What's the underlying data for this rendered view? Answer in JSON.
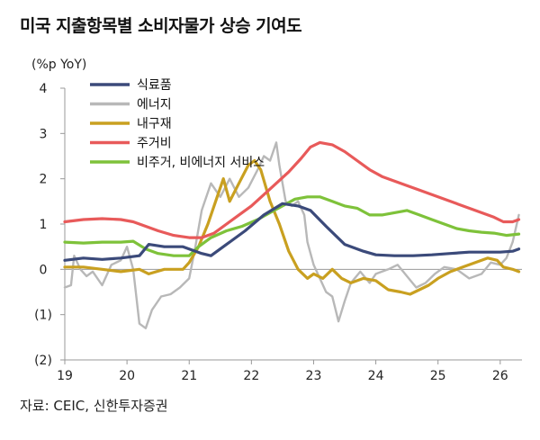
{
  "title": "미국 지출항목별 소비자물가 상승 기여도",
  "source": "자료: CEIC, 신한투자증권",
  "chart_data": {
    "type": "line",
    "ylabel": "(%p YoY)",
    "ylim": [
      -2,
      4
    ],
    "yticks": [
      4,
      3,
      2,
      1,
      0,
      -1,
      -2
    ],
    "ytick_labels": [
      "4",
      "3",
      "2",
      "1",
      "0",
      "(1)",
      "(2)"
    ],
    "xlim": [
      2019.0,
      2026.35
    ],
    "xticks": [
      2019,
      2020,
      2021,
      2022,
      2023,
      2024,
      2025,
      2026
    ],
    "xtick_labels": [
      "19",
      "20",
      "21",
      "22",
      "23",
      "24",
      "25",
      "26"
    ],
    "legend_position": "top-left",
    "series": [
      {
        "name": "식료품",
        "color": "#3b4a7a",
        "width": 3.2,
        "points": [
          [
            2019.0,
            0.2
          ],
          [
            2019.3,
            0.25
          ],
          [
            2019.6,
            0.22
          ],
          [
            2019.9,
            0.25
          ],
          [
            2020.2,
            0.3
          ],
          [
            2020.35,
            0.55
          ],
          [
            2020.6,
            0.5
          ],
          [
            2020.9,
            0.5
          ],
          [
            2021.0,
            0.45
          ],
          [
            2021.2,
            0.35
          ],
          [
            2021.35,
            0.3
          ],
          [
            2021.6,
            0.55
          ],
          [
            2021.9,
            0.85
          ],
          [
            2022.2,
            1.2
          ],
          [
            2022.5,
            1.45
          ],
          [
            2022.75,
            1.4
          ],
          [
            2022.95,
            1.3
          ],
          [
            2023.2,
            0.95
          ],
          [
            2023.5,
            0.55
          ],
          [
            2023.8,
            0.4
          ],
          [
            2024.0,
            0.32
          ],
          [
            2024.3,
            0.3
          ],
          [
            2024.6,
            0.3
          ],
          [
            2024.9,
            0.32
          ],
          [
            2025.2,
            0.35
          ],
          [
            2025.5,
            0.38
          ],
          [
            2025.8,
            0.38
          ],
          [
            2026.0,
            0.38
          ],
          [
            2026.2,
            0.4
          ],
          [
            2026.3,
            0.45
          ]
        ]
      },
      {
        "name": "에너지",
        "color": "#b8b8b8",
        "width": 2.4,
        "points": [
          [
            2019.0,
            -0.4
          ],
          [
            2019.1,
            -0.35
          ],
          [
            2019.15,
            0.3
          ],
          [
            2019.25,
            0.0
          ],
          [
            2019.35,
            -0.15
          ],
          [
            2019.45,
            -0.05
          ],
          [
            2019.6,
            -0.35
          ],
          [
            2019.75,
            0.1
          ],
          [
            2019.9,
            0.2
          ],
          [
            2020.0,
            0.5
          ],
          [
            2020.1,
            0.0
          ],
          [
            2020.2,
            -1.2
          ],
          [
            2020.3,
            -1.3
          ],
          [
            2020.4,
            -0.9
          ],
          [
            2020.55,
            -0.6
          ],
          [
            2020.7,
            -0.55
          ],
          [
            2020.85,
            -0.4
          ],
          [
            2021.0,
            -0.2
          ],
          [
            2021.1,
            0.5
          ],
          [
            2021.2,
            1.3
          ],
          [
            2021.35,
            1.9
          ],
          [
            2021.5,
            1.6
          ],
          [
            2021.65,
            2.0
          ],
          [
            2021.8,
            1.6
          ],
          [
            2021.95,
            1.8
          ],
          [
            2022.1,
            2.2
          ],
          [
            2022.2,
            2.5
          ],
          [
            2022.3,
            2.4
          ],
          [
            2022.4,
            2.8
          ],
          [
            2022.45,
            2.3
          ],
          [
            2022.55,
            1.5
          ],
          [
            2022.65,
            1.4
          ],
          [
            2022.75,
            1.5
          ],
          [
            2022.85,
            1.2
          ],
          [
            2022.9,
            0.6
          ],
          [
            2023.0,
            0.1
          ],
          [
            2023.1,
            -0.2
          ],
          [
            2023.2,
            -0.5
          ],
          [
            2023.3,
            -0.6
          ],
          [
            2023.4,
            -1.15
          ],
          [
            2023.5,
            -0.7
          ],
          [
            2023.6,
            -0.3
          ],
          [
            2023.75,
            -0.05
          ],
          [
            2023.9,
            -0.3
          ],
          [
            2024.0,
            -0.1
          ],
          [
            2024.2,
            0.0
          ],
          [
            2024.35,
            0.1
          ],
          [
            2024.5,
            -0.15
          ],
          [
            2024.65,
            -0.4
          ],
          [
            2024.8,
            -0.3
          ],
          [
            2024.95,
            -0.1
          ],
          [
            2025.1,
            0.05
          ],
          [
            2025.3,
            0.0
          ],
          [
            2025.5,
            -0.2
          ],
          [
            2025.7,
            -0.1
          ],
          [
            2025.85,
            0.15
          ],
          [
            2026.0,
            0.1
          ],
          [
            2026.1,
            0.25
          ],
          [
            2026.2,
            0.6
          ],
          [
            2026.3,
            1.2
          ]
        ]
      },
      {
        "name": "내구재",
        "color": "#c9a020",
        "width": 3.2,
        "points": [
          [
            2019.0,
            0.05
          ],
          [
            2019.3,
            0.05
          ],
          [
            2019.6,
            0.0
          ],
          [
            2019.9,
            -0.05
          ],
          [
            2020.2,
            0.0
          ],
          [
            2020.35,
            -0.1
          ],
          [
            2020.6,
            0.0
          ],
          [
            2020.9,
            0.0
          ],
          [
            2021.0,
            0.15
          ],
          [
            2021.15,
            0.5
          ],
          [
            2021.3,
            1.0
          ],
          [
            2021.45,
            1.6
          ],
          [
            2021.55,
            2.0
          ],
          [
            2021.65,
            1.5
          ],
          [
            2021.8,
            1.9
          ],
          [
            2021.95,
            2.3
          ],
          [
            2022.05,
            2.4
          ],
          [
            2022.15,
            2.2
          ],
          [
            2022.3,
            1.5
          ],
          [
            2022.45,
            1.0
          ],
          [
            2022.6,
            0.4
          ],
          [
            2022.75,
            0.0
          ],
          [
            2022.9,
            -0.2
          ],
          [
            2023.0,
            -0.1
          ],
          [
            2023.15,
            -0.2
          ],
          [
            2023.3,
            0.0
          ],
          [
            2023.45,
            -0.2
          ],
          [
            2023.6,
            -0.3
          ],
          [
            2023.8,
            -0.2
          ],
          [
            2024.0,
            -0.25
          ],
          [
            2024.2,
            -0.45
          ],
          [
            2024.4,
            -0.5
          ],
          [
            2024.55,
            -0.55
          ],
          [
            2024.7,
            -0.45
          ],
          [
            2024.85,
            -0.35
          ],
          [
            2025.0,
            -0.2
          ],
          [
            2025.2,
            -0.05
          ],
          [
            2025.4,
            0.05
          ],
          [
            2025.6,
            0.15
          ],
          [
            2025.8,
            0.25
          ],
          [
            2025.95,
            0.2
          ],
          [
            2026.05,
            0.05
          ],
          [
            2026.2,
            0.0
          ],
          [
            2026.3,
            -0.05
          ]
        ]
      },
      {
        "name": "주거비",
        "color": "#e85a5a",
        "width": 3.2,
        "points": [
          [
            2019.0,
            1.05
          ],
          [
            2019.3,
            1.1
          ],
          [
            2019.6,
            1.12
          ],
          [
            2019.9,
            1.1
          ],
          [
            2020.1,
            1.05
          ],
          [
            2020.3,
            0.95
          ],
          [
            2020.5,
            0.85
          ],
          [
            2020.75,
            0.75
          ],
          [
            2021.0,
            0.7
          ],
          [
            2021.2,
            0.7
          ],
          [
            2021.4,
            0.8
          ],
          [
            2021.6,
            1.0
          ],
          [
            2021.8,
            1.2
          ],
          [
            2022.0,
            1.4
          ],
          [
            2022.2,
            1.65
          ],
          [
            2022.4,
            1.9
          ],
          [
            2022.6,
            2.15
          ],
          [
            2022.8,
            2.45
          ],
          [
            2022.95,
            2.7
          ],
          [
            2023.1,
            2.8
          ],
          [
            2023.3,
            2.75
          ],
          [
            2023.5,
            2.6
          ],
          [
            2023.7,
            2.4
          ],
          [
            2023.9,
            2.2
          ],
          [
            2024.1,
            2.05
          ],
          [
            2024.3,
            1.95
          ],
          [
            2024.5,
            1.85
          ],
          [
            2024.7,
            1.75
          ],
          [
            2024.9,
            1.65
          ],
          [
            2025.1,
            1.55
          ],
          [
            2025.3,
            1.45
          ],
          [
            2025.5,
            1.35
          ],
          [
            2025.7,
            1.25
          ],
          [
            2025.9,
            1.15
          ],
          [
            2026.05,
            1.05
          ],
          [
            2026.2,
            1.05
          ],
          [
            2026.3,
            1.1
          ]
        ]
      },
      {
        "name": "비주거, 비에너지 서비스",
        "color": "#7ec23a",
        "width": 3.2,
        "points": [
          [
            2019.0,
            0.6
          ],
          [
            2019.3,
            0.58
          ],
          [
            2019.6,
            0.6
          ],
          [
            2019.9,
            0.6
          ],
          [
            2020.1,
            0.62
          ],
          [
            2020.3,
            0.45
          ],
          [
            2020.5,
            0.35
          ],
          [
            2020.75,
            0.3
          ],
          [
            2021.0,
            0.3
          ],
          [
            2021.15,
            0.5
          ],
          [
            2021.35,
            0.7
          ],
          [
            2021.6,
            0.85
          ],
          [
            2021.85,
            0.95
          ],
          [
            2022.1,
            1.1
          ],
          [
            2022.3,
            1.25
          ],
          [
            2022.5,
            1.4
          ],
          [
            2022.7,
            1.55
          ],
          [
            2022.9,
            1.6
          ],
          [
            2023.1,
            1.6
          ],
          [
            2023.3,
            1.5
          ],
          [
            2023.5,
            1.4
          ],
          [
            2023.7,
            1.35
          ],
          [
            2023.9,
            1.2
          ],
          [
            2024.1,
            1.2
          ],
          [
            2024.3,
            1.25
          ],
          [
            2024.5,
            1.3
          ],
          [
            2024.7,
            1.2
          ],
          [
            2024.9,
            1.1
          ],
          [
            2025.1,
            1.0
          ],
          [
            2025.3,
            0.9
          ],
          [
            2025.5,
            0.85
          ],
          [
            2025.7,
            0.82
          ],
          [
            2025.9,
            0.8
          ],
          [
            2026.1,
            0.75
          ],
          [
            2026.3,
            0.78
          ]
        ]
      }
    ]
  }
}
